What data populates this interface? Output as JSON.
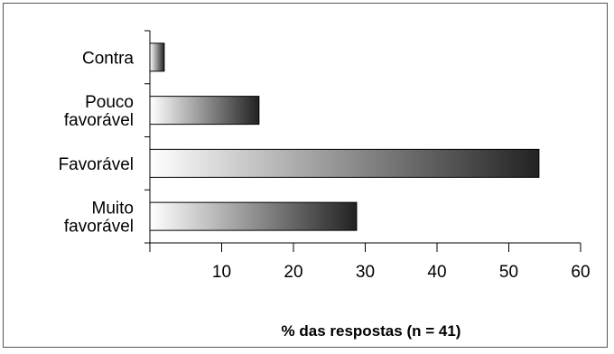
{
  "chart_data": {
    "type": "bar",
    "orientation": "horizontal",
    "categories": [
      "Contra",
      "Pouco favorável",
      "Favorável",
      "Muito favorável"
    ],
    "category_lines": [
      [
        "Contra"
      ],
      [
        "Pouco",
        "favorável"
      ],
      [
        "Favorável"
      ],
      [
        "Muito",
        "favorável"
      ]
    ],
    "values": [
      2,
      15.2,
      54.2,
      28.8
    ],
    "xlabel": "% das respostas (n = 41)",
    "ylabel": "",
    "xlim": [
      0,
      60
    ],
    "xticks": [
      10,
      20,
      30,
      40,
      50,
      60
    ],
    "grid": false,
    "legend": "none",
    "bar_gradient": [
      "#ffffff",
      "#222222"
    ]
  }
}
